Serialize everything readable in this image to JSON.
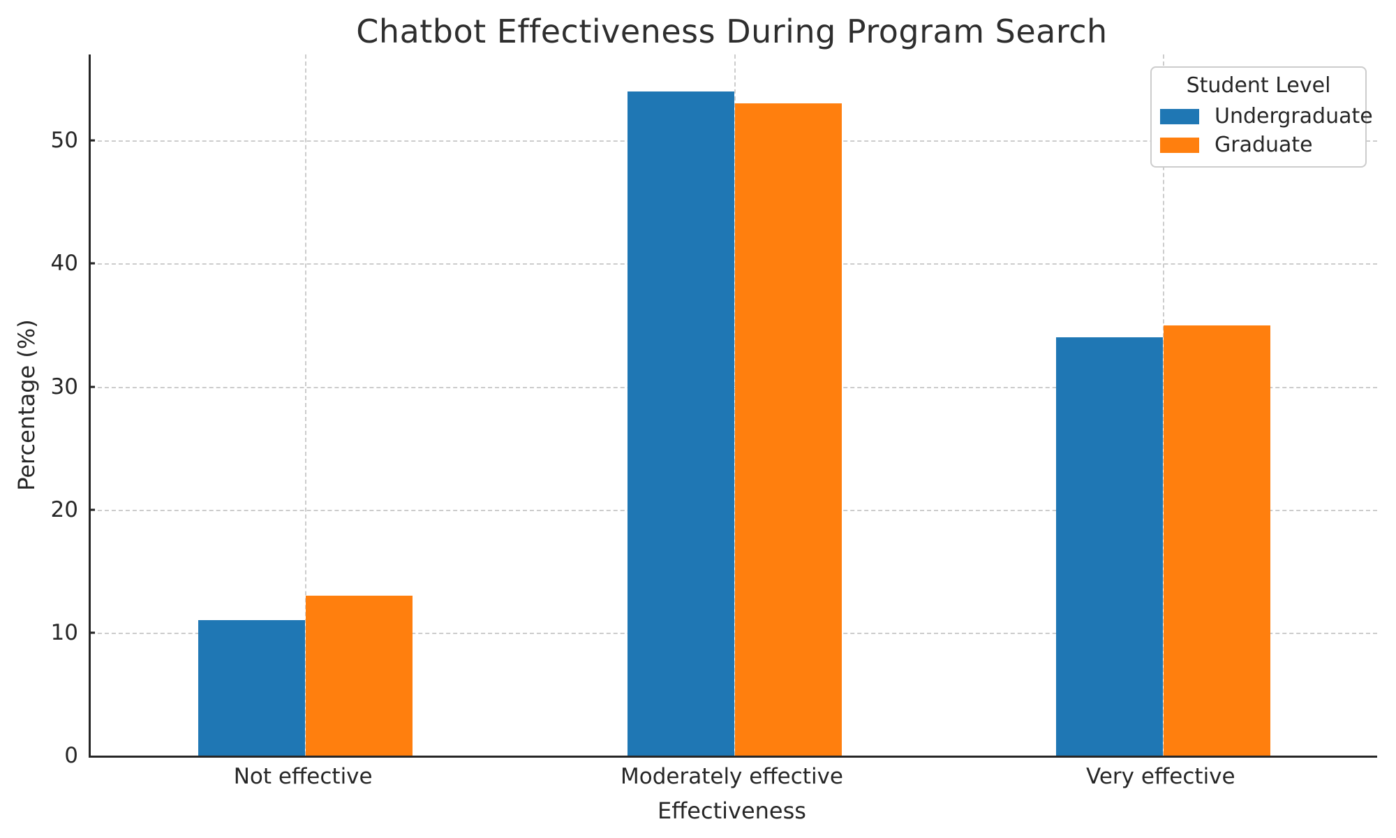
{
  "chart_data": {
    "type": "bar",
    "title": "Chatbot Effectiveness During Program Search",
    "xlabel": "Effectiveness",
    "ylabel": "Percentage (%)",
    "categories": [
      "Not effective",
      "Moderately effective",
      "Very effective"
    ],
    "series": [
      {
        "name": "Undergraduate",
        "color": "#1f77b4",
        "values": [
          11,
          54,
          34
        ]
      },
      {
        "name": "Graduate",
        "color": "#ff7f0e",
        "values": [
          13,
          53,
          35
        ]
      }
    ],
    "yticks": [
      0,
      10,
      20,
      30,
      40,
      50
    ],
    "ylim": [
      0,
      57
    ],
    "grid": "dashed-both-axes",
    "legend": {
      "title": "Student Level",
      "position": "upper right"
    },
    "colors": {
      "undergraduate": "#1f77b4",
      "graduate": "#ff7f0e",
      "gridline": "#cccccc",
      "spine": "#262626",
      "text": "#262626",
      "title_text": "#2e2e2e",
      "background": "#ffffff"
    }
  }
}
